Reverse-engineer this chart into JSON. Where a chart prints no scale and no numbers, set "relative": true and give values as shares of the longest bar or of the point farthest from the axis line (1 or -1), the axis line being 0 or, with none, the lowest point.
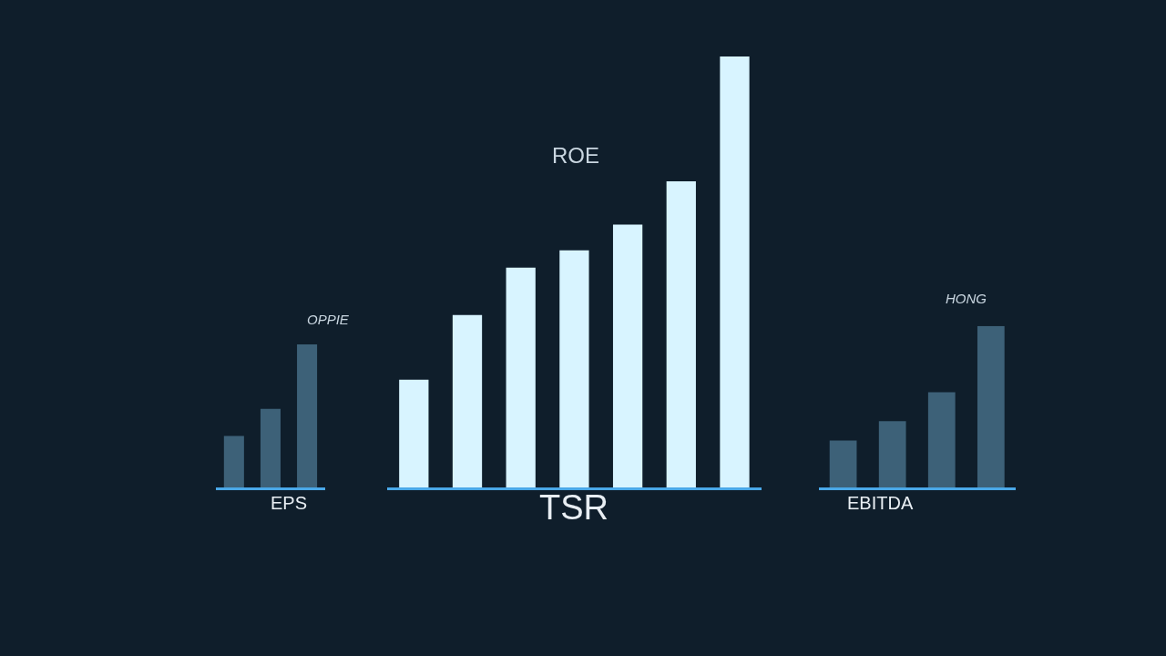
{
  "chart_data": [
    {
      "type": "bar",
      "relative": true,
      "xlabel": "EPS",
      "annotations": [
        "OPPIE"
      ],
      "categories": [
        null,
        null,
        null
      ],
      "values": [
        0.36,
        0.55,
        1
      ],
      "color": "#3d6178",
      "grid": false
    },
    {
      "type": "bar",
      "relative": true,
      "xlabel": "TSR",
      "annotations": [
        "ROE"
      ],
      "categories": [
        null,
        null,
        null,
        null,
        null,
        null,
        null
      ],
      "values": [
        0.25,
        0.4,
        0.51,
        0.55,
        0.61,
        0.71,
        1
      ],
      "color": "#d8f4ff",
      "grid": false
    },
    {
      "type": "bar",
      "relative": true,
      "xlabel": "EBITDA",
      "annotations": [
        "HONG"
      ],
      "categories": [
        null,
        null,
        null,
        null
      ],
      "values": [
        0.29,
        0.41,
        0.59,
        1
      ],
      "color": "#3d6178",
      "grid": false
    }
  ]
}
